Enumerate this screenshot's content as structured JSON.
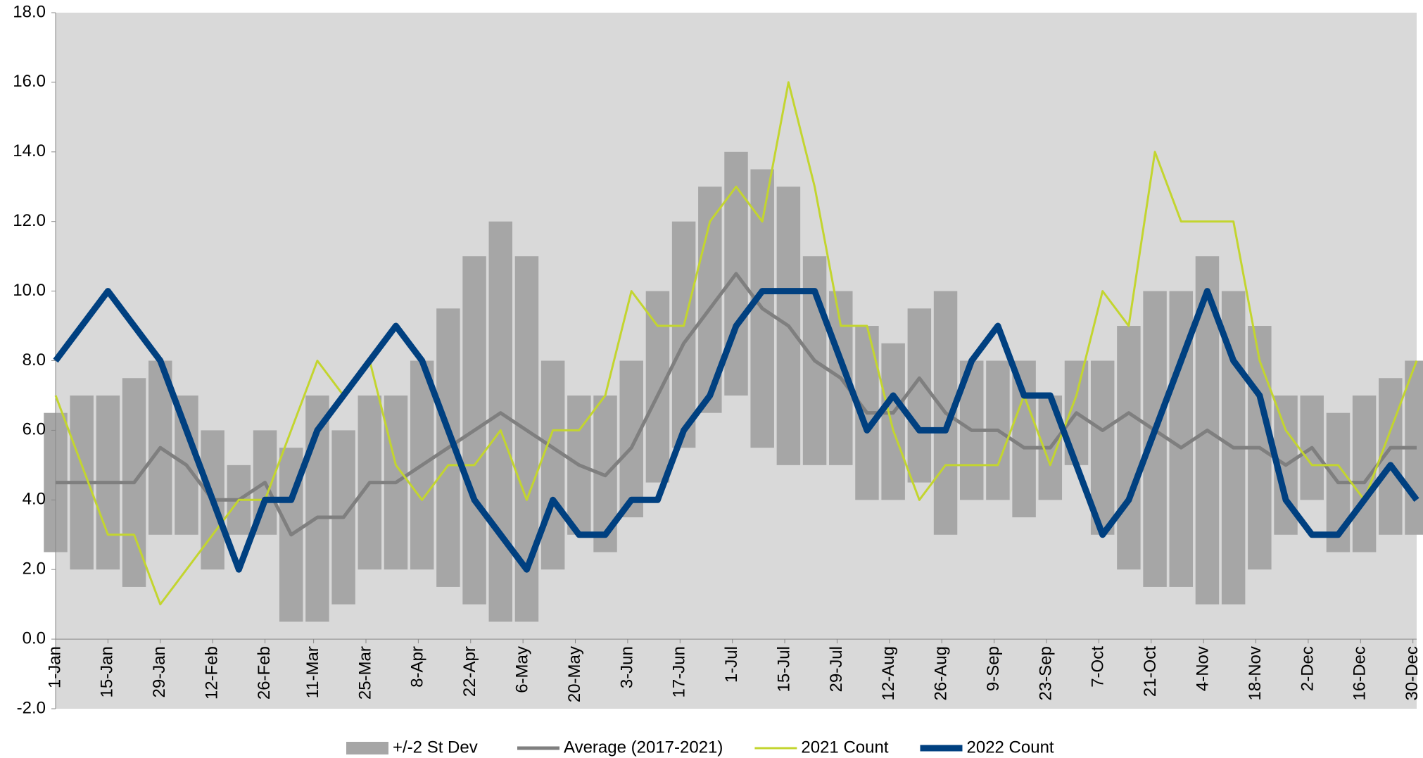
{
  "chart_data": {
    "type": "line",
    "x": [
      0,
      7,
      14,
      21,
      28,
      35,
      42,
      49,
      56,
      63,
      70,
      77,
      84,
      91,
      98,
      105,
      112,
      119,
      126,
      133,
      140,
      147,
      154,
      161,
      168,
      175,
      182,
      189,
      196,
      203,
      210,
      217,
      224,
      231,
      238,
      245,
      252,
      259,
      266,
      273,
      280,
      287,
      294,
      301,
      308,
      315,
      322,
      329,
      336,
      343,
      350,
      357,
      364
    ],
    "xlim": [
      0,
      364
    ],
    "xticks": [
      {
        "value": 0,
        "label": "1-Jan"
      },
      {
        "value": 14,
        "label": "15-Jan"
      },
      {
        "value": 28,
        "label": "29-Jan"
      },
      {
        "value": 42,
        "label": "12-Feb"
      },
      {
        "value": 56,
        "label": "26-Feb"
      },
      {
        "value": 69,
        "label": "11-Mar"
      },
      {
        "value": 83,
        "label": "25-Mar"
      },
      {
        "value": 97,
        "label": "8-Apr"
      },
      {
        "value": 111,
        "label": "22-Apr"
      },
      {
        "value": 125,
        "label": "6-May"
      },
      {
        "value": 139,
        "label": "20-May"
      },
      {
        "value": 153,
        "label": "3-Jun"
      },
      {
        "value": 167,
        "label": "17-Jun"
      },
      {
        "value": 181,
        "label": "1-Jul"
      },
      {
        "value": 195,
        "label": "15-Jul"
      },
      {
        "value": 209,
        "label": "29-Jul"
      },
      {
        "value": 223,
        "label": "12-Aug"
      },
      {
        "value": 237,
        "label": "26-Aug"
      },
      {
        "value": 251,
        "label": "9-Sep"
      },
      {
        "value": 265,
        "label": "23-Sep"
      },
      {
        "value": 279,
        "label": "7-Oct"
      },
      {
        "value": 293,
        "label": "21-Oct"
      },
      {
        "value": 307,
        "label": "4-Nov"
      },
      {
        "value": 321,
        "label": "18-Nov"
      },
      {
        "value": 335,
        "label": "2-Dec"
      },
      {
        "value": 349,
        "label": "16-Dec"
      },
      {
        "value": 363,
        "label": "30-Dec"
      }
    ],
    "ylim": [
      -2,
      18
    ],
    "yticks": [
      {
        "value": -2,
        "label": "-2.0"
      },
      {
        "value": 0,
        "label": "0.0"
      },
      {
        "value": 2,
        "label": "2.0"
      },
      {
        "value": 4,
        "label": "4.0"
      },
      {
        "value": 6,
        "label": "6.0"
      },
      {
        "value": 8,
        "label": "8.0"
      },
      {
        "value": 10,
        "label": "10.0"
      },
      {
        "value": 12,
        "label": "12.0"
      },
      {
        "value": 14,
        "label": "14.0"
      },
      {
        "value": 16,
        "label": "16.0"
      },
      {
        "value": 18,
        "label": "18.0"
      }
    ],
    "band": {
      "name": "+/-2 St Dev",
      "color": "#a6a6a6",
      "lower": [
        2.5,
        2,
        2,
        1.5,
        3,
        3,
        2,
        3,
        3,
        0.5,
        0.5,
        1,
        2,
        2,
        2,
        1.5,
        1,
        0.5,
        0.5,
        2,
        3,
        2.5,
        3.5,
        4.5,
        5.5,
        6.5,
        7,
        5.5,
        5,
        5,
        5,
        4,
        4,
        4.5,
        3,
        4,
        4,
        3.5,
        4,
        5,
        3,
        2,
        1.5,
        1.5,
        1,
        1,
        2,
        3,
        4,
        2.5,
        2.5,
        3,
        3
      ],
      "upper": [
        6.5,
        7,
        7,
        7.5,
        8,
        7,
        6,
        5,
        6,
        5.5,
        7,
        6,
        7,
        7,
        8,
        9.5,
        11,
        12,
        11,
        8,
        7,
        7,
        8,
        10,
        12,
        13,
        14,
        13.5,
        13,
        11,
        10,
        9,
        8.5,
        9.5,
        10,
        8,
        8,
        8,
        7,
        8,
        8,
        9,
        10,
        10,
        11,
        10,
        9,
        7,
        7,
        6.5,
        7,
        7.5,
        8
      ]
    },
    "series": [
      {
        "name": "Average (2017-2021)",
        "color": "#7f7f7f",
        "values": [
          4.5,
          4.5,
          4.5,
          4.5,
          5.5,
          5,
          4,
          4,
          4.5,
          3,
          3.5,
          3.5,
          4.5,
          4.5,
          5,
          5.5,
          6,
          6.5,
          6,
          5.5,
          5,
          4.7,
          5.5,
          7,
          8.5,
          9.5,
          10.5,
          9.5,
          9,
          8,
          7.5,
          6.5,
          6.5,
          7.5,
          6.5,
          6,
          6,
          5.5,
          5.5,
          6.5,
          6,
          6.5,
          6,
          5.5,
          6,
          5.5,
          5.5,
          5,
          5.5,
          4.5,
          4.5,
          5.5,
          5.5
        ]
      },
      {
        "name": "2021 Count",
        "color": "#c3d52f",
        "values": [
          7,
          5,
          3,
          3,
          1,
          2,
          3,
          4,
          4,
          6,
          8,
          7,
          8,
          5,
          4,
          5,
          5,
          6,
          4,
          6,
          6,
          7,
          10,
          9,
          9,
          12,
          13,
          12,
          16,
          13,
          9,
          9,
          6,
          4,
          5,
          5,
          5,
          7,
          5,
          7,
          10,
          9,
          14,
          12,
          12,
          12,
          8,
          6,
          5,
          5,
          4,
          6,
          8
        ]
      },
      {
        "name": "2022 Count",
        "color": "#004080",
        "values": [
          8,
          9,
          10,
          9,
          8,
          6,
          4,
          2,
          4,
          4,
          6,
          7,
          8,
          9,
          8,
          6,
          4,
          3,
          2,
          4,
          3,
          3,
          4,
          4,
          6,
          7,
          9,
          10,
          10,
          10,
          8,
          6,
          7,
          6,
          6,
          8,
          9,
          7,
          7,
          5,
          3,
          4,
          6,
          8,
          10,
          8,
          7,
          4,
          3,
          3,
          4,
          5,
          4
        ]
      }
    ],
    "plot_background": "#d9d9d9"
  }
}
